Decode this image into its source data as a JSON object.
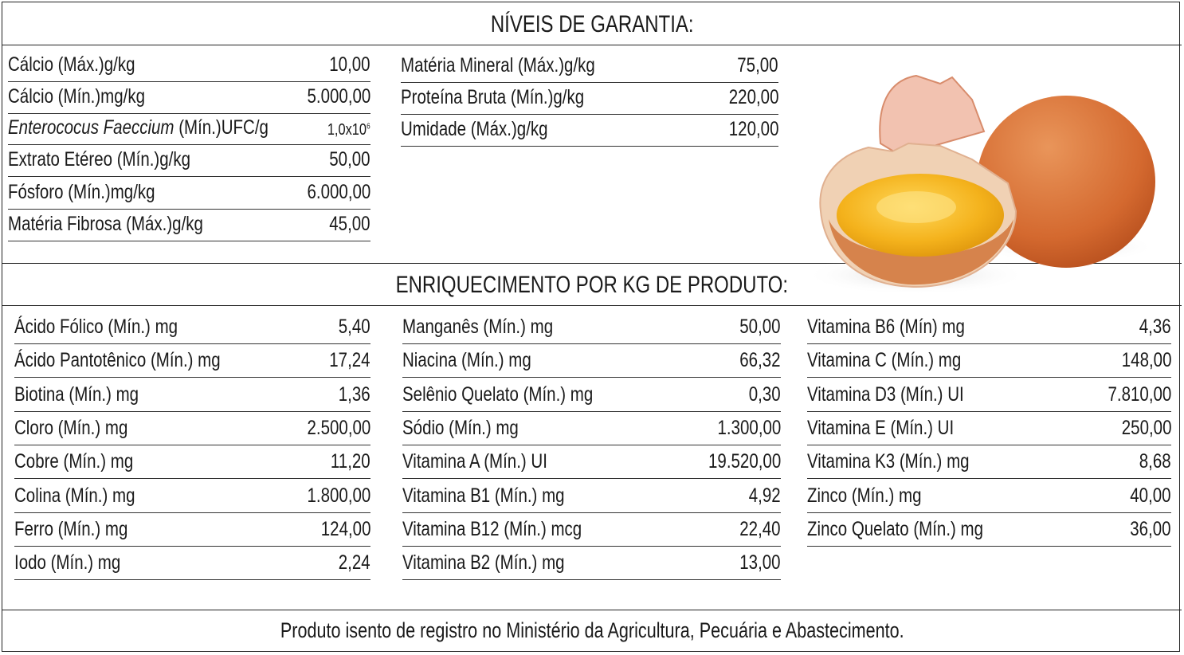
{
  "guarantee": {
    "title": "NÍVEIS DE GARANTIA:",
    "col1": [
      {
        "label": "Cálcio (Máx.)g/kg",
        "value": "10,00"
      },
      {
        "label": "Cálcio (Mín.)mg/kg",
        "value": "5.000,00"
      },
      {
        "label_italic": "Enterococus Faeccium",
        "label": " (Mín.)UFC/g",
        "value": "1,0x10",
        "value_exp": "6"
      },
      {
        "label": "Extrato Etéreo (Mín.)g/kg",
        "value": "50,00"
      },
      {
        "label": "Fósforo (Mín.)mg/kg",
        "value": "6.000,00"
      },
      {
        "label": "Matéria Fibrosa (Máx.)g/kg",
        "value": "45,00"
      }
    ],
    "col2": [
      {
        "label": "Matéria Mineral (Máx.)g/kg",
        "value": "75,00"
      },
      {
        "label": "Proteína Bruta (Mín.)g/kg",
        "value": "220,00"
      },
      {
        "label": "Umidade (Máx.)g/kg",
        "value": "120,00"
      }
    ]
  },
  "enrichment": {
    "title": "ENRIQUECIMENTO POR KG DE PRODUTO:",
    "col1": [
      {
        "label": "Ácido Fólico (Mín.) mg",
        "value": "5,40"
      },
      {
        "label": "Ácido Pantotênico (Mín.) mg",
        "value": "17,24"
      },
      {
        "label": "Biotina (Mín.) mg",
        "value": "1,36"
      },
      {
        "label": "Cloro (Mín.) mg",
        "value": "2.500,00"
      },
      {
        "label": "Cobre (Mín.) mg",
        "value": "11,20"
      },
      {
        "label": "Colina (Mín.) mg",
        "value": "1.800,00"
      },
      {
        "label": "Ferro (Mín.) mg",
        "value": "124,00"
      },
      {
        "label": "Iodo (Mín.) mg",
        "value": "2,24"
      }
    ],
    "col2": [
      {
        "label": "Manganês (Mín.) mg",
        "value": "50,00"
      },
      {
        "label": "Niacina (Mín.) mg",
        "value": "66,32"
      },
      {
        "label": "Selênio Quelato (Mín.) mg",
        "value": "0,30"
      },
      {
        "label": "Sódio (Mín.) mg",
        "value": "1.300,00"
      },
      {
        "label": "Vitamina A (Mín.) UI",
        "value": "19.520,00"
      },
      {
        "label": "Vitamina B1 (Mín.)  mg",
        "value": "4,92"
      },
      {
        "label": "Vitamina B12 (Mín.) mcg",
        "value": "22,40"
      },
      {
        "label": "Vitamina B2 (Mín.) mg",
        "value": "13,00"
      }
    ],
    "col3": [
      {
        "label": "Vitamina B6 (Mín) mg",
        "value": "4,36"
      },
      {
        "label": "Vitamina C (Mín.) mg",
        "value": "148,00"
      },
      {
        "label": "Vitamina D3 (Mín.) UI",
        "value": "7.810,00"
      },
      {
        "label": "Vitamina E (Mín.) UI",
        "value": "250,00"
      },
      {
        "label": "Vitamina K3 (Mín.) mg",
        "value": "8,68"
      },
      {
        "label": "Zinco (Mín.) mg",
        "value": "40,00"
      },
      {
        "label": "Zinco Quelato (Mín.) mg",
        "value": "36,00"
      }
    ]
  },
  "footer": "Produto isento de registro no Ministério da Agricultura, Pecuária e Abastecimento.",
  "image": {
    "icon": "eggs-image"
  }
}
